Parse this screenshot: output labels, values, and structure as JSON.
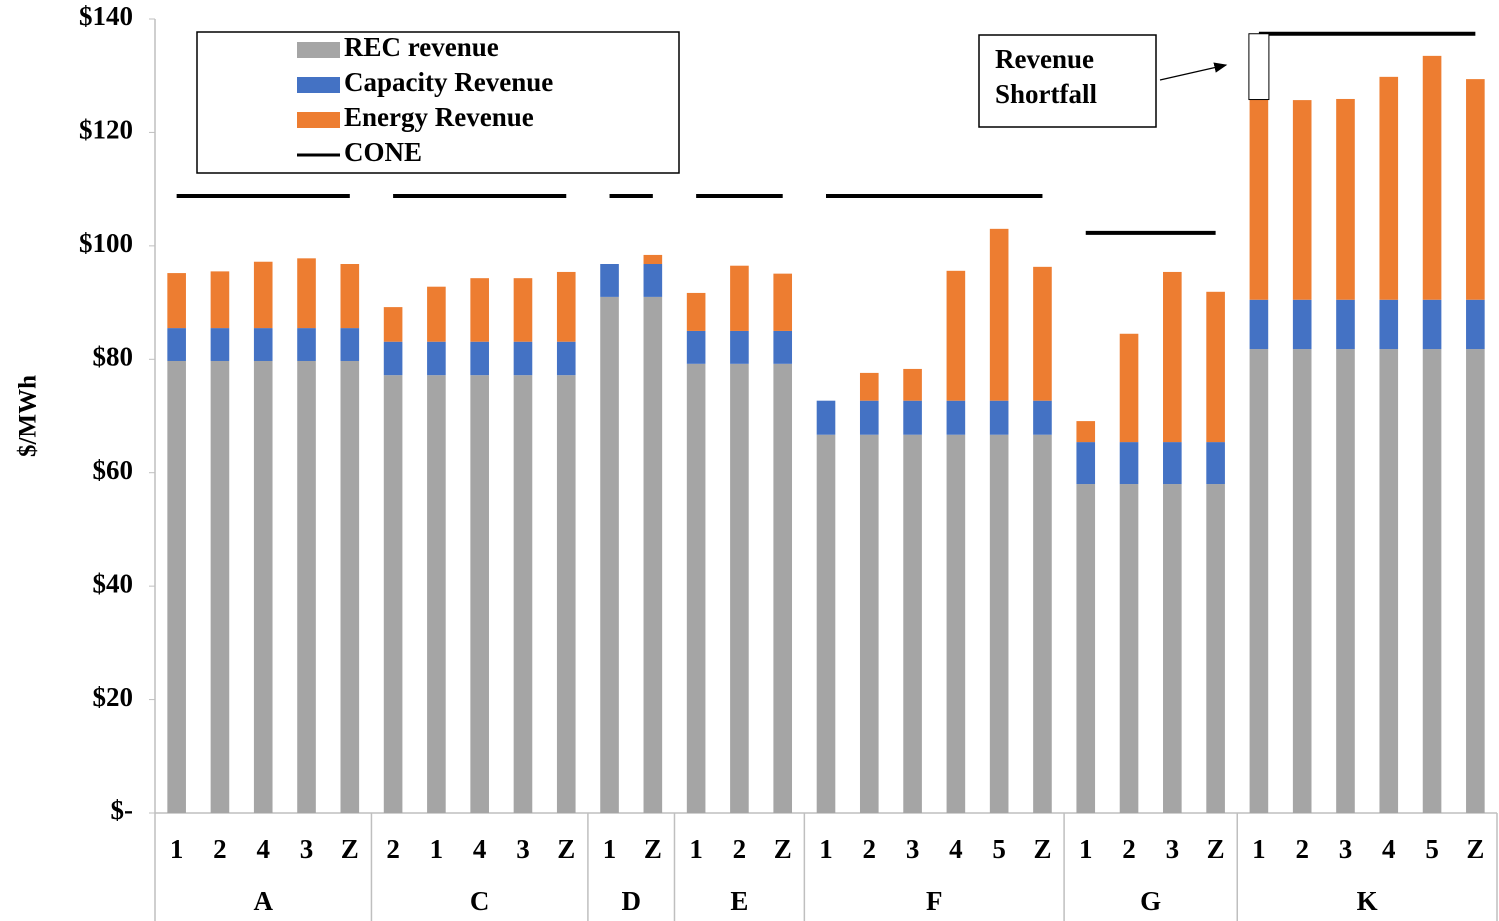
{
  "chart_data": {
    "type": "bar",
    "stacked": true,
    "y_label": "$/MWh",
    "groups": [
      {
        "label": "A",
        "categories": [
          "1",
          "2",
          "4",
          "3",
          "Z"
        ]
      },
      {
        "label": "C",
        "categories": [
          "2",
          "1",
          "4",
          "3",
          "Z"
        ]
      },
      {
        "label": "D",
        "categories": [
          "1",
          "Z"
        ]
      },
      {
        "label": "E",
        "categories": [
          "1",
          "2",
          "Z"
        ]
      },
      {
        "label": "F",
        "categories": [
          "1",
          "2",
          "3",
          "4",
          "5",
          "Z"
        ]
      },
      {
        "label": "G",
        "categories": [
          "1",
          "2",
          "3",
          "Z"
        ]
      },
      {
        "label": "K",
        "categories": [
          "1",
          "2",
          "3",
          "4",
          "5",
          "Z"
        ]
      }
    ],
    "series": [
      {
        "name": "REC revenue",
        "color": "#a5a5a5",
        "type": "bar",
        "values": [
          79.7,
          79.7,
          79.7,
          79.7,
          79.7,
          77.2,
          77.2,
          77.2,
          77.2,
          77.2,
          91.0,
          91.0,
          79.2,
          79.2,
          79.2,
          66.7,
          66.7,
          66.7,
          66.7,
          66.7,
          66.7,
          58.0,
          58.0,
          58.0,
          58.0,
          81.8,
          81.8,
          81.8,
          81.8,
          81.8,
          81.8
        ]
      },
      {
        "name": "Capacity Revenue",
        "color": "#4472c4",
        "type": "bar",
        "values": [
          5.8,
          5.8,
          5.8,
          5.8,
          5.8,
          5.9,
          5.9,
          5.9,
          5.9,
          5.9,
          5.8,
          5.8,
          5.8,
          5.8,
          5.8,
          6.0,
          6.0,
          6.0,
          6.0,
          6.0,
          6.0,
          7.4,
          7.4,
          7.4,
          7.4,
          8.7,
          8.7,
          8.7,
          8.7,
          8.7,
          8.7
        ]
      },
      {
        "name": "Energy Revenue",
        "color": "#ed7d31",
        "type": "bar",
        "values": [
          9.7,
          10.0,
          11.7,
          12.3,
          11.3,
          6.1,
          9.7,
          11.2,
          11.2,
          12.3,
          0,
          1.6,
          6.7,
          11.5,
          10.1,
          0,
          4.9,
          5.6,
          22.9,
          30.3,
          23.6,
          3.7,
          19.1,
          30.0,
          26.5,
          35.3,
          35.2,
          35.4,
          39.3,
          43.0,
          38.9
        ]
      },
      {
        "name": "CONE",
        "color": "#000000",
        "type": "line",
        "values": [
          108.8,
          108.8,
          108.8,
          108.8,
          108.8,
          108.8,
          108.8,
          108.8,
          108.8,
          108.8,
          108.8,
          108.8,
          108.8,
          108.8,
          108.8,
          108.8,
          108.8,
          108.8,
          108.8,
          108.8,
          108.8,
          102.3,
          102.3,
          102.3,
          102.3,
          137.4,
          137.4,
          137.4,
          137.4,
          137.4,
          137.4
        ]
      }
    ],
    "ylim": [
      0,
      140
    ],
    "yticks": [
      {
        "value": 0,
        "label": "$-"
      },
      {
        "value": 20,
        "label": "$20"
      },
      {
        "value": 40,
        "label": "$40"
      },
      {
        "value": 60,
        "label": "$60"
      },
      {
        "value": 80,
        "label": "$80"
      },
      {
        "value": 100,
        "label": "$100"
      },
      {
        "value": 120,
        "label": "$120"
      },
      {
        "value": 140,
        "label": "$140"
      }
    ],
    "annotation_lines": [
      "Revenue",
      "Shortfall"
    ]
  }
}
